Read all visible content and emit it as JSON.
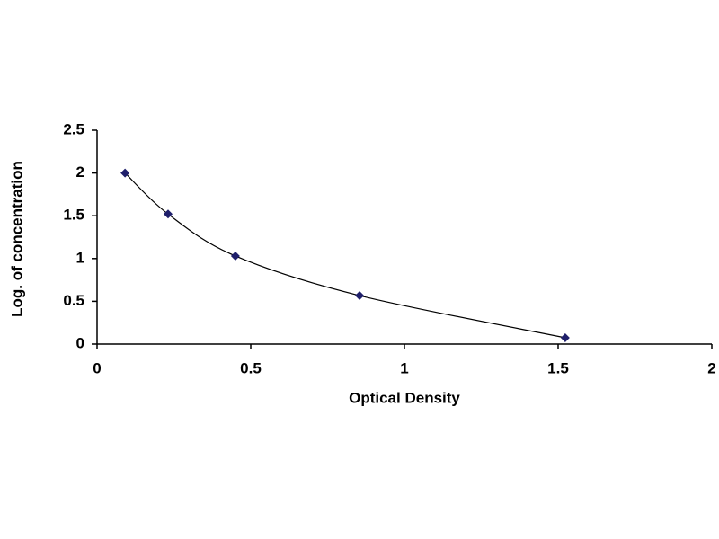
{
  "chart_data": {
    "type": "scatter",
    "x_label": "Optical Density",
    "y_label": "Log. of concentration",
    "x": [
      0.091,
      0.231,
      0.45,
      0.854,
      1.523
    ],
    "values": [
      2.0,
      1.52,
      1.03,
      0.567,
      0.074
    ],
    "color": "#1f1f6b",
    "line_color": "#000000",
    "smooth": true,
    "xlim": [
      0,
      2
    ],
    "xticks": [
      0,
      0.5,
      1,
      1.5,
      2
    ],
    "ylim": [
      0,
      2.5
    ],
    "yticks": [
      0,
      0.5,
      1,
      1.5,
      2,
      2.5
    ],
    "grid": false
  }
}
